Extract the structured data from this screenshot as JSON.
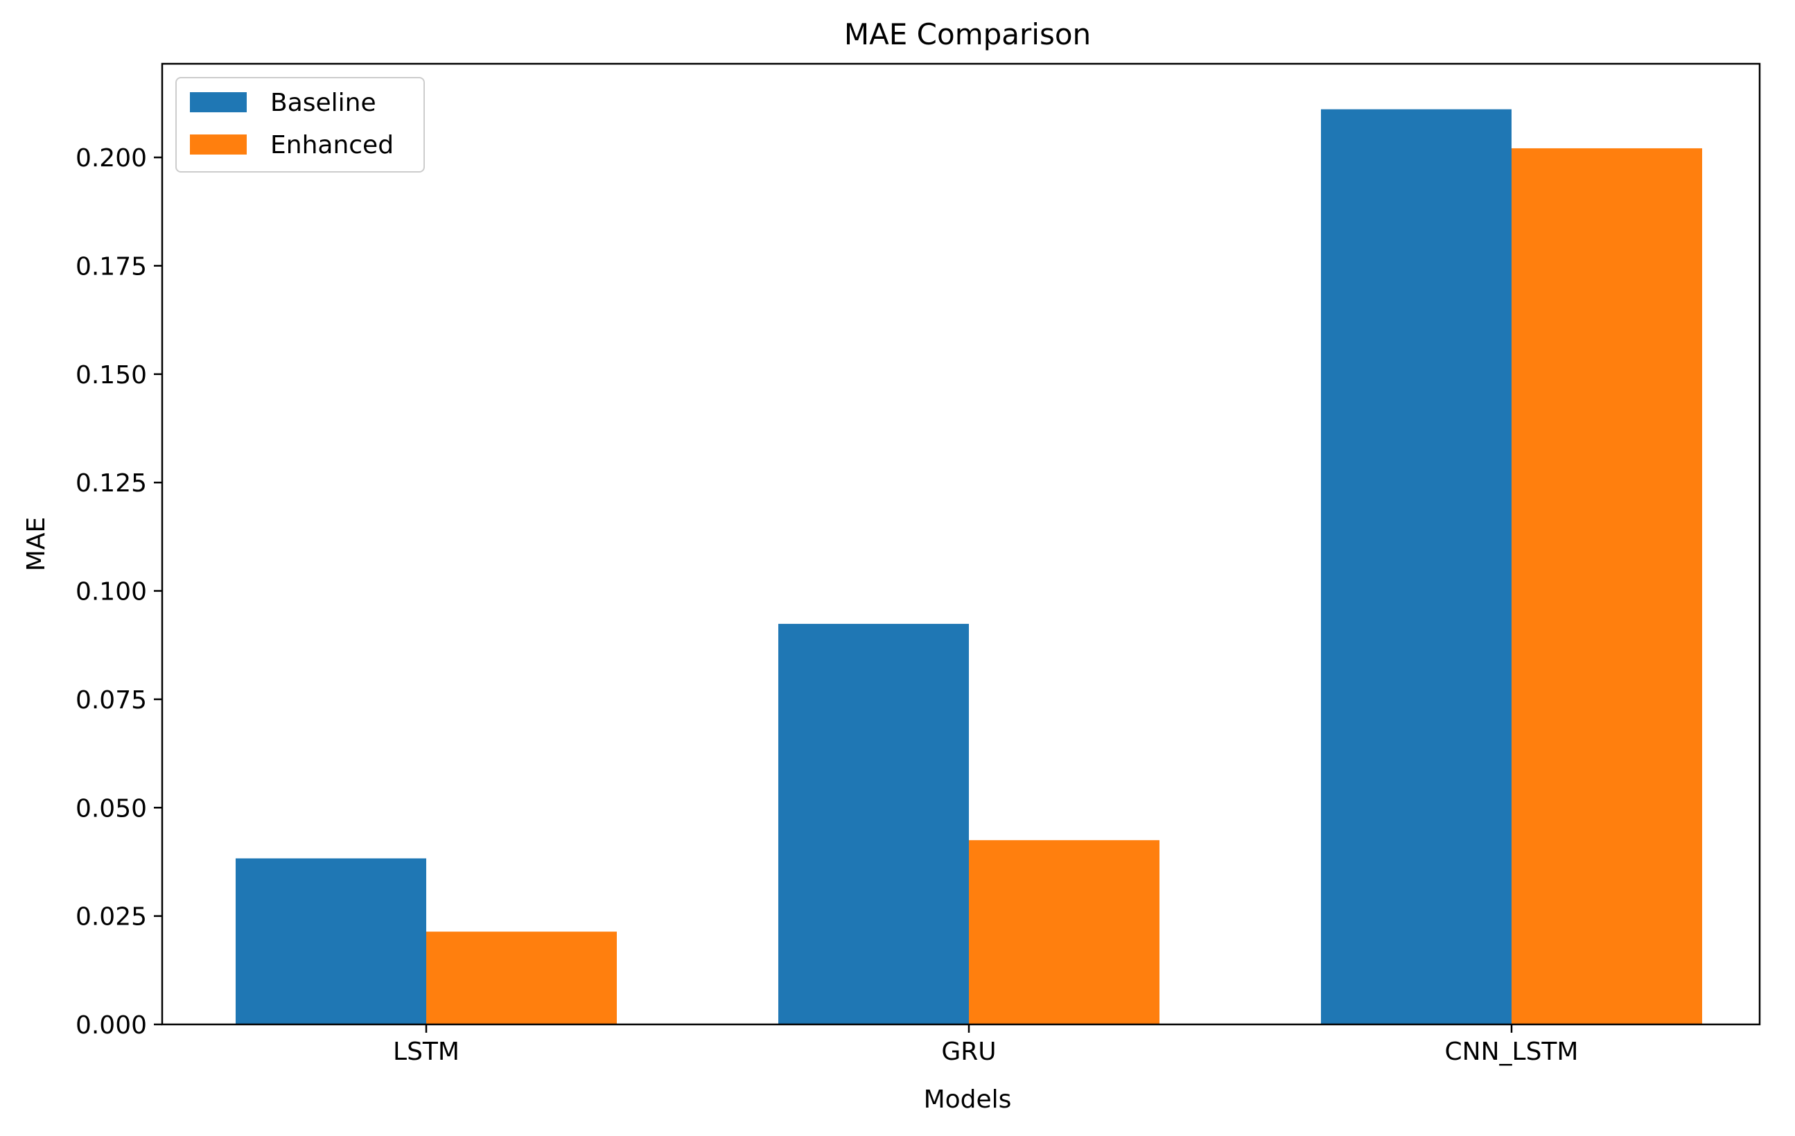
{
  "chart_data": {
    "type": "bar",
    "title": "MAE Comparison",
    "xlabel": "Models",
    "ylabel": "MAE",
    "categories": [
      "LSTM",
      "GRU",
      "CNN_LSTM"
    ],
    "series": [
      {
        "name": "Baseline",
        "values": [
          0.0383,
          0.0924,
          0.2111
        ],
        "color": "#1f77b4"
      },
      {
        "name": "Enhanced",
        "values": [
          0.0214,
          0.0425,
          0.2021
        ],
        "color": "#ff7f0e"
      }
    ],
    "ylim": [
      0,
      0.2216
    ],
    "yticks": [
      0.0,
      0.025,
      0.05,
      0.075,
      0.1,
      0.125,
      0.15,
      0.175,
      0.2
    ],
    "ytick_labels": [
      "0.000",
      "0.025",
      "0.050",
      "0.075",
      "0.100",
      "0.125",
      "0.150",
      "0.175",
      "0.200"
    ],
    "grid": false,
    "legend_position": "top-left"
  }
}
